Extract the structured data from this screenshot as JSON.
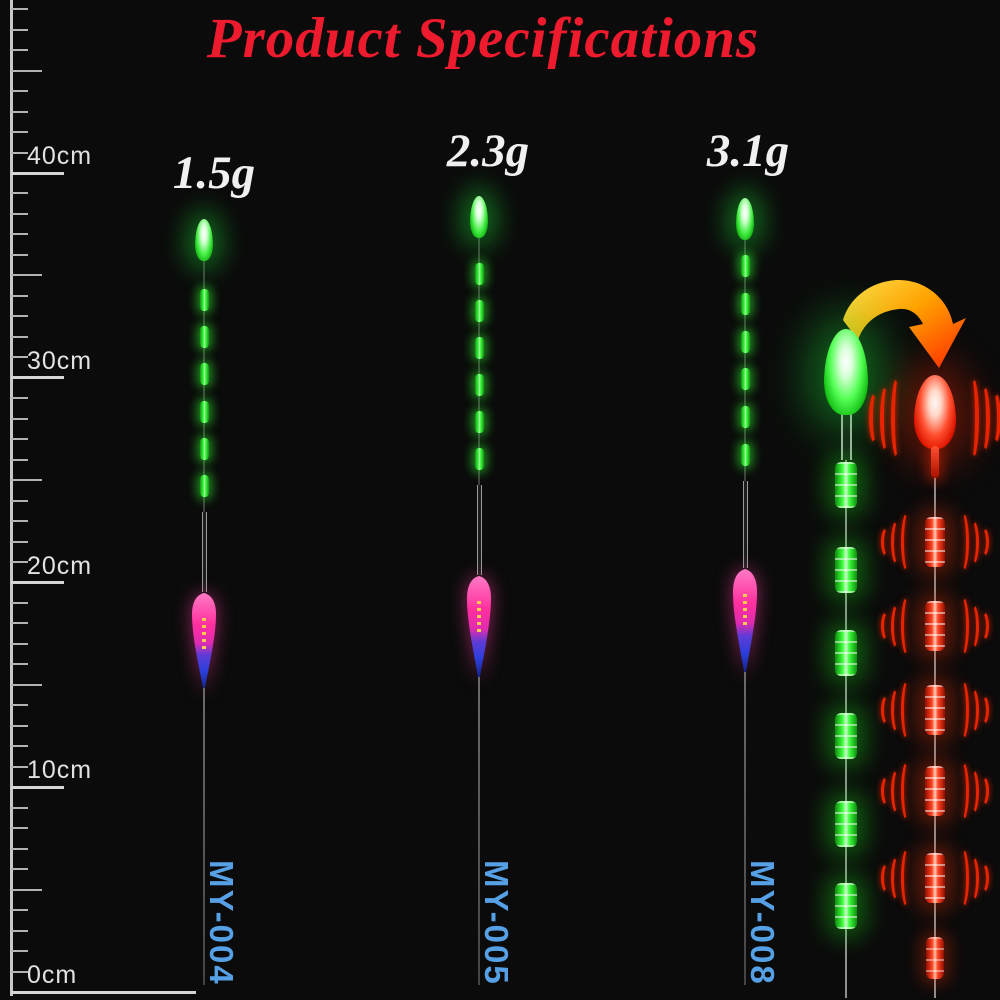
{
  "title": {
    "text": "Product Specifications",
    "color": "#ed1b2d"
  },
  "ruler": {
    "unit": "cm",
    "labels": [
      "40cm",
      "30cm",
      "20cm",
      "10cm",
      "0cm"
    ],
    "label_values_cm": [
      40,
      30,
      20,
      10,
      0
    ],
    "range_cm": [
      0,
      48
    ]
  },
  "floats": [
    {
      "weight": "1.5g",
      "model": "MY-004",
      "led_segments": 6,
      "tip_color": "green"
    },
    {
      "weight": "2.3g",
      "model": "MY-005",
      "led_segments": 6,
      "tip_color": "green"
    },
    {
      "weight": "3.1g",
      "model": "MY-008",
      "led_segments": 6,
      "tip_color": "green"
    }
  ],
  "color_demo": {
    "modes": [
      "green-light",
      "red-light-on-bite"
    ],
    "green_segment_count": 6,
    "red_segment_count": 6
  },
  "colors": {
    "title_red": "#ed1b2d",
    "weight_text": "#f0f0f0",
    "model_blue": "#56a0e6",
    "led_green": "#3dff3d",
    "led_red": "#ff3311",
    "body_pink": "#ff2f9e",
    "body_blue": "#2a3fdc",
    "ruler_gray": "#c8c8c8",
    "arrow_yellow": "#ffe14d",
    "arrow_red": "#ff2d00"
  }
}
